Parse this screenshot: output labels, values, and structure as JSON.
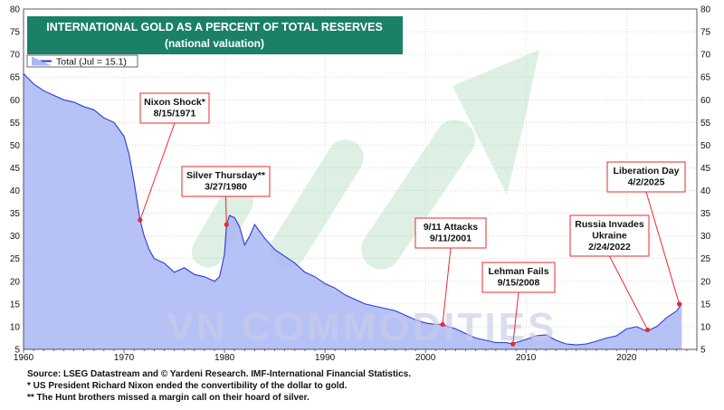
{
  "chart_data": {
    "type": "area",
    "title": "INTERNATIONAL GOLD AS A PERCENT OF TOTAL RESERVES",
    "subtitle": "(national valuation)",
    "legend": [
      "Total (Jul = 15.1)"
    ],
    "legend_placement": "top-left",
    "xlim": [
      1960,
      2027
    ],
    "ylim": [
      5,
      80
    ],
    "x_ticks": [
      1960,
      1970,
      1980,
      1990,
      2000,
      2010,
      2020
    ],
    "y_ticks": [
      5,
      10,
      15,
      20,
      25,
      30,
      35,
      40,
      45,
      50,
      55,
      60,
      65,
      70,
      75,
      80
    ],
    "grid": true,
    "series": [
      {
        "name": "Total (Jul = 15.1)",
        "color": "#2b3bd6",
        "fill": "#a9b6f5",
        "x": [
          1960,
          1961,
          1962,
          1963,
          1964,
          1965,
          1966,
          1967,
          1968,
          1969,
          1970,
          1970.5,
          1971,
          1971.6,
          1972,
          1972.5,
          1973,
          1974,
          1975,
          1976,
          1977,
          1978,
          1979,
          1979.5,
          1980,
          1980.2,
          1980.5,
          1981,
          1981.5,
          1982,
          1982.5,
          1983,
          1983.5,
          1984,
          1985,
          1986,
          1987,
          1988,
          1989,
          1990,
          1991,
          1992,
          1993,
          1994,
          1995,
          1996,
          1997,
          1998,
          1999,
          2000,
          2001,
          2001.7,
          2002,
          2003,
          2004,
          2005,
          2006,
          2007,
          2008,
          2008.7,
          2009,
          2010,
          2011,
          2012,
          2013,
          2014,
          2015,
          2016,
          2017,
          2018,
          2019,
          2020,
          2021,
          2022,
          2023,
          2024,
          2025,
          2025.5
        ],
        "values": [
          65.8,
          63.5,
          62,
          61,
          60,
          59.5,
          58.5,
          57.8,
          56,
          55,
          52,
          48,
          42,
          33.5,
          30,
          27,
          25,
          24,
          22,
          23,
          21.5,
          21,
          20,
          21,
          26,
          32.5,
          34.5,
          34,
          32,
          28,
          30,
          32.5,
          31,
          29.5,
          27,
          25.5,
          24,
          22,
          21,
          19.5,
          18.5,
          17,
          16,
          15,
          14.5,
          14,
          13.5,
          12.5,
          11.5,
          10.8,
          10.5,
          10.5,
          10.2,
          9.5,
          8.5,
          7.5,
          7,
          6.5,
          6.5,
          6.2,
          6.5,
          7.2,
          8,
          8.2,
          7,
          6.2,
          6,
          6.2,
          6.8,
          7.5,
          8,
          9.5,
          10,
          9,
          10,
          12,
          13.5,
          15.1
        ]
      }
    ],
    "annotations": [
      {
        "lines": [
          "Nixon Shock*",
          "8/15/1971"
        ],
        "x": 1971.6,
        "y": 33.5
      },
      {
        "lines": [
          "Silver Thursday**",
          "3/27/1980"
        ],
        "x": 1980.2,
        "y": 32.5
      },
      {
        "lines": [
          "9/11 Attacks",
          "9/11/2001"
        ],
        "x": 2001.7,
        "y": 10.5
      },
      {
        "lines": [
          "Lehman Fails",
          "9/15/2008"
        ],
        "x": 2008.7,
        "y": 6.2
      },
      {
        "lines": [
          "Russia Invades",
          "Ukraine",
          "2/24/2022"
        ],
        "x": 2022.1,
        "y": 9.3
      },
      {
        "lines": [
          "Liberation Day",
          "4/2/2025"
        ],
        "x": 2025.25,
        "y": 15.0
      }
    ]
  },
  "watermark": "VN COMMODITIES",
  "footnotes": [
    "Source: LSEG Datastream and © Yardeni Research. IMF-International Financial Statistics.",
    "* US President Richard Nixon ended the convertibility of the dollar to gold.",
    "** The Hunt brothers missed a margin call on their hoard of silver."
  ]
}
